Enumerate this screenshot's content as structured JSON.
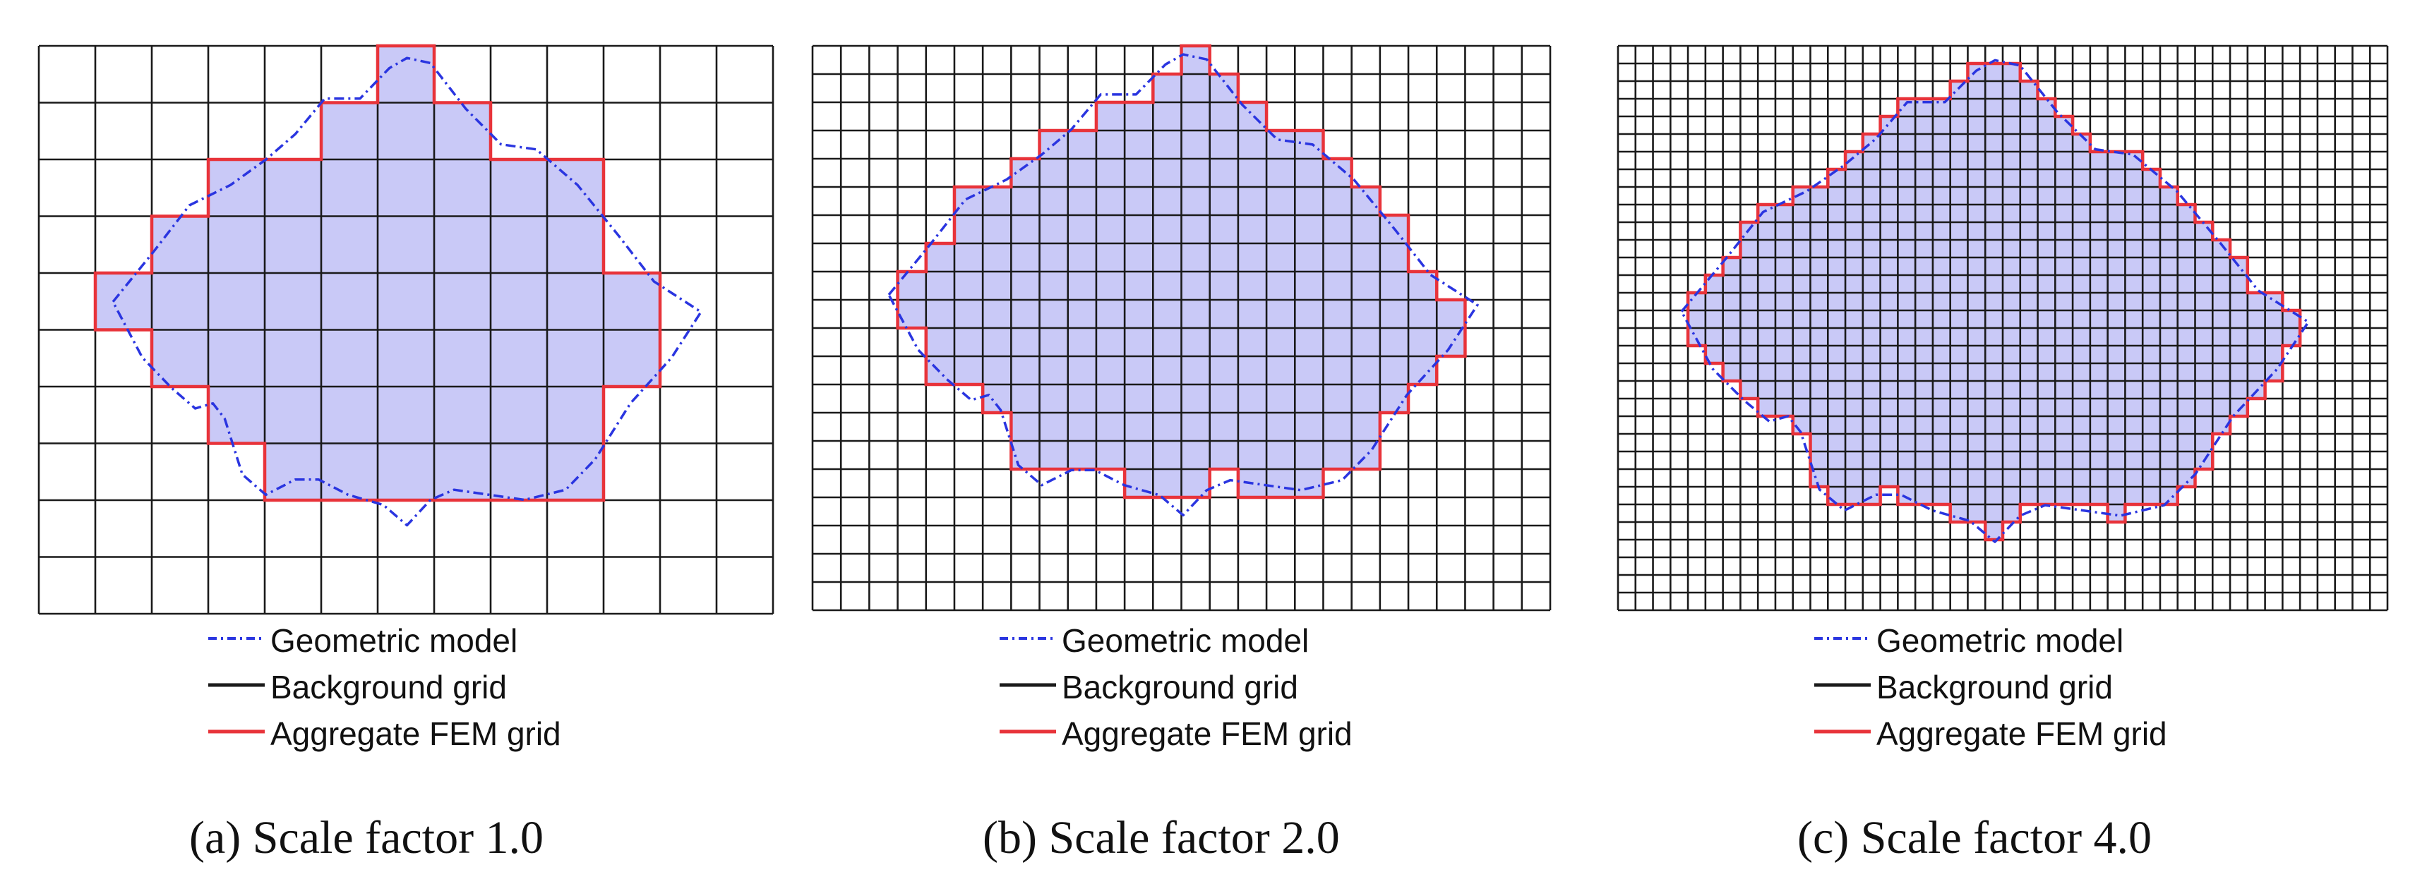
{
  "colors": {
    "grid": "#1a1a1a",
    "geometric_model": "#2a35e0",
    "fem_grid": "#e8333a",
    "fill": "#c9c9f7"
  },
  "legend": {
    "geometric_model": "Geometric model",
    "background_grid": "Background grid",
    "aggregate_fem_grid": "Aggregate FEM grid"
  },
  "panels": [
    {
      "id": "a",
      "caption": "(a) Scale factor 1.0",
      "scale_factor": 1.0
    },
    {
      "id": "b",
      "caption": "(b) Scale factor 2.0",
      "scale_factor": 2.0
    },
    {
      "id": "c",
      "caption": "(c) Scale factor 4.0",
      "scale_factor": 4.0
    }
  ]
}
